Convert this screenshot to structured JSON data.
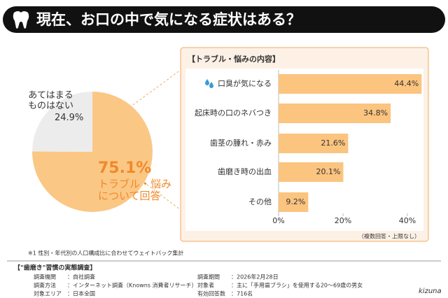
{
  "header": {
    "title": "現在、お口の中で気になる症状はある？"
  },
  "chart_data": [
    {
      "type": "pie",
      "categories": [
        "トラブル・悩み\nについて回答",
        "あてはまる\nものはない"
      ],
      "values": [
        75.1,
        24.9
      ],
      "value_labels": [
        "75.1%",
        "24.9%"
      ],
      "colors": [
        "#fbc785",
        "#ececec"
      ]
    },
    {
      "type": "bar",
      "title": "【トラブル・悩みの内容】",
      "note": "（複数回答・上限なし）",
      "categories": [
        "口臭が気になる",
        "起床時の口のネバつき",
        "歯茎の腫れ・赤み",
        "歯磨き時の出血",
        "その他"
      ],
      "values": [
        44.4,
        34.8,
        21.6,
        20.1,
        9.2
      ],
      "value_labels": [
        "44.4%",
        "34.8%",
        "21.6%",
        "20.1%",
        "9.2%"
      ],
      "color": "#fbc47f",
      "xlim": [
        0,
        45
      ],
      "xticks": [
        {
          "value": 0,
          "label": "0%"
        },
        {
          "value": 20,
          "label": "20%"
        },
        {
          "value": 40,
          "label": "40%"
        }
      ],
      "grid": false
    }
  ],
  "footnote": "※1 性別・年代別の人口構成比に合わせてウェイトバック集計",
  "survey": {
    "title": "【\"歯磨き\"習慣の実態調査】",
    "items": [
      {
        "label": "調査機関",
        "value": "：自社調査"
      },
      {
        "label": "調査方法",
        "value": "：インターネット調査（Knowns 消費者リサーチ）"
      },
      {
        "label": "対象エリア",
        "value": "：日本全国"
      },
      {
        "label": "調査期間",
        "value": "：2026年2月28日"
      },
      {
        "label": "対象者",
        "value": "：主に「手用歯ブラシ」を使用する20～69歳の男女"
      },
      {
        "label": "有効回答数",
        "value": "：716名"
      }
    ]
  },
  "logo": "kizuna"
}
